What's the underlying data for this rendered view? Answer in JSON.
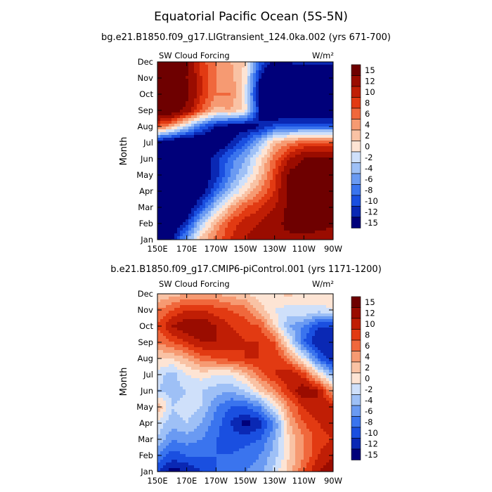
{
  "figure_title": "Equatorial Pacific Ocean (5S-5N)",
  "colors": [
    "#00007a",
    "#0a28b4",
    "#1a4fe0",
    "#3a74ee",
    "#6a9af2",
    "#9ec0f6",
    "#cfe0fa",
    "#fde4d4",
    "#f9c2a4",
    "#f69a72",
    "#f0683c",
    "#e23a12",
    "#c01e05",
    "#9a0c00",
    "#6e0000"
  ],
  "chart_data": [
    {
      "type": "heatmap",
      "title": "bg.e21.B1850.f09_g17.LIGtransient_124.0ka.002 (yrs 671-700)",
      "subtitle_left": "SW Cloud Forcing",
      "subtitle_right": "W/m²",
      "ylabel": "Month",
      "x_ticks": [
        "150E",
        "170E",
        "170W",
        "150W",
        "130W",
        "110W",
        "90W"
      ],
      "x_tick_lon": [
        150,
        170,
        190,
        210,
        230,
        250,
        270
      ],
      "x_range": [
        150,
        270
      ],
      "y_ticks": [
        "Jan",
        "Feb",
        "Mar",
        "Apr",
        "May",
        "Jun",
        "Jul",
        "Aug",
        "Sep",
        "Oct",
        "Nov",
        "Dec"
      ],
      "y_range": [
        1,
        12
      ],
      "colorbar_levels": [
        -15,
        -12,
        -10,
        -8,
        -6,
        -4,
        -2,
        0,
        2,
        4,
        6,
        8,
        10,
        12,
        15
      ],
      "colorbar_labels": [
        "-15",
        "-12",
        "-10",
        "-8",
        "-6",
        "-4",
        "-2",
        "0",
        "2",
        "4",
        "6",
        "8",
        "10",
        "12",
        "15"
      ],
      "grid": false,
      "x": [
        150,
        160,
        170,
        180,
        190,
        200,
        210,
        220,
        230,
        240,
        250,
        260,
        270
      ],
      "y": [
        1,
        2,
        3,
        4,
        5,
        6,
        7,
        8,
        9,
        10,
        11,
        12
      ],
      "z": [
        [
          -18,
          -12,
          -4,
          3,
          7,
          10,
          12,
          14,
          15,
          14,
          14,
          13,
          12
        ],
        [
          -18,
          -16,
          -11,
          -2,
          4,
          9,
          11,
          12,
          14,
          16,
          17,
          17,
          16
        ],
        [
          -18,
          -17,
          -15,
          -9,
          -2,
          4,
          8,
          10,
          12,
          16,
          18,
          18,
          18
        ],
        [
          -18,
          -18,
          -17,
          -14,
          -8,
          -3,
          2,
          6,
          10,
          16,
          18,
          18,
          18
        ],
        [
          -18,
          -18,
          -17,
          -15,
          -11,
          -6,
          -2,
          3,
          9,
          16,
          18,
          18,
          18
        ],
        [
          -18,
          -17,
          -16,
          -14,
          -11,
          -7,
          -4,
          1,
          7,
          12,
          15,
          15,
          15
        ],
        [
          -14,
          -16,
          -17,
          -16,
          -15,
          -12,
          -8,
          -3,
          3,
          6,
          8,
          8,
          8
        ],
        [
          8,
          4,
          -2,
          -8,
          -12,
          -14,
          -14,
          -12,
          -9,
          -8,
          -8,
          -8,
          -8
        ],
        [
          18,
          18,
          14,
          8,
          3,
          4,
          1,
          -12,
          -16,
          -17,
          -17,
          -17,
          -17
        ],
        [
          18,
          18,
          16,
          10,
          6,
          6,
          0,
          -14,
          -18,
          -18,
          -18,
          -18,
          -18
        ],
        [
          18,
          18,
          15,
          10,
          6,
          5,
          1,
          -12,
          -18,
          -18,
          -18,
          -18,
          -18
        ],
        [
          18,
          18,
          16,
          9,
          6,
          4,
          2,
          -8,
          -14,
          -12,
          -10,
          -10,
          -10
        ]
      ]
    },
    {
      "type": "heatmap",
      "title": "b.e21.B1850.f09_g17.CMIP6-piControl.001 (yrs 1171-1200)",
      "subtitle_left": "SW Cloud Forcing",
      "subtitle_right": "W/m²",
      "ylabel": "Month",
      "x_ticks": [
        "150E",
        "170E",
        "170W",
        "150W",
        "130W",
        "110W",
        "90W"
      ],
      "x_tick_lon": [
        150,
        170,
        190,
        210,
        230,
        250,
        270
      ],
      "x_range": [
        150,
        270
      ],
      "y_ticks": [
        "Jan",
        "Feb",
        "Mar",
        "Apr",
        "May",
        "Jun",
        "Jul",
        "Aug",
        "Sep",
        "Oct",
        "Nov",
        "Dec"
      ],
      "y_range": [
        1,
        12
      ],
      "colorbar_levels": [
        -15,
        -12,
        -10,
        -8,
        -6,
        -4,
        -2,
        0,
        2,
        4,
        6,
        8,
        10,
        12,
        15
      ],
      "colorbar_labels": [
        "-15",
        "-12",
        "-10",
        "-8",
        "-6",
        "-4",
        "-2",
        "0",
        "2",
        "4",
        "6",
        "8",
        "10",
        "12",
        "15"
      ],
      "grid": false,
      "x": [
        150,
        160,
        170,
        180,
        190,
        200,
        210,
        220,
        230,
        240,
        250,
        260,
        270
      ],
      "y": [
        1,
        2,
        3,
        4,
        5,
        6,
        7,
        8,
        9,
        10,
        11,
        12
      ],
      "z": [
        [
          -10,
          -13,
          -12,
          -10,
          -8,
          -7,
          -6,
          -5,
          -1,
          3,
          8,
          12,
          14
        ],
        [
          -6,
          -9,
          -8,
          -8,
          -8,
          -8,
          -7,
          -6,
          -3,
          2,
          6,
          10,
          12
        ],
        [
          -2,
          -6,
          -5,
          -6,
          -8,
          -9,
          -9,
          -8,
          -4,
          2,
          6,
          9,
          10
        ],
        [
          -1,
          -3,
          -2,
          -4,
          -7,
          -10,
          -13,
          -11,
          -6,
          4,
          8,
          10,
          12
        ],
        [
          4,
          -2,
          -1,
          -2,
          -6,
          -8,
          -8,
          -6,
          0,
          6,
          10,
          12,
          11
        ],
        [
          -2,
          -3,
          -2,
          -2,
          -3,
          -4,
          -2,
          2,
          6,
          10,
          14,
          12,
          4
        ],
        [
          -1,
          -3,
          0,
          1,
          0,
          0,
          3,
          7,
          10,
          12,
          9,
          2,
          -4
        ],
        [
          2,
          2,
          4,
          7,
          8,
          9,
          10,
          10,
          10,
          6,
          0,
          -8,
          -12
        ],
        [
          6,
          8,
          10,
          12,
          12,
          11,
          10,
          10,
          8,
          0,
          -8,
          -12,
          -12
        ],
        [
          8,
          12,
          14,
          14,
          12,
          10,
          9,
          8,
          2,
          -4,
          -6,
          -10,
          -10
        ],
        [
          6,
          8,
          10,
          10,
          9,
          8,
          7,
          3,
          0,
          -1,
          0,
          -1,
          0
        ],
        [
          2,
          3,
          4,
          4,
          4,
          3,
          2,
          1,
          1,
          3,
          0,
          2,
          2
        ]
      ]
    }
  ]
}
